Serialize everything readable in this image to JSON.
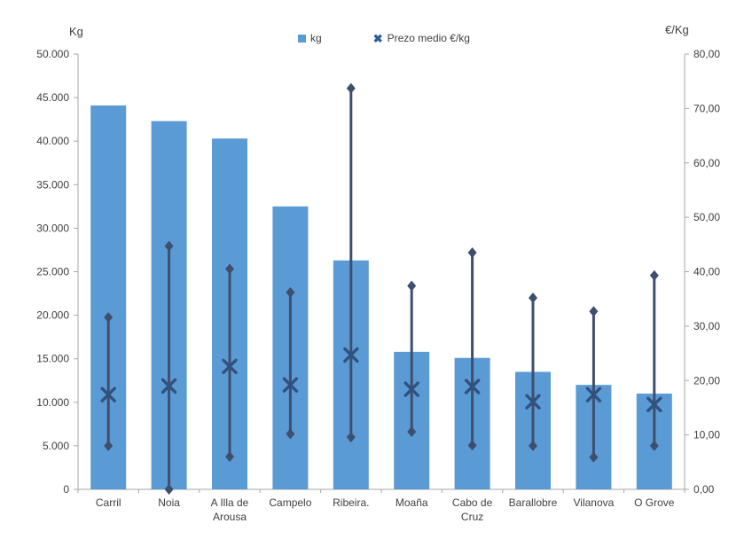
{
  "chart_data": {
    "type": "bar",
    "title": "",
    "categories": [
      "Carril",
      "Noia",
      "A Illa de Arousa",
      "Campelo",
      "Ribeira.",
      "Moaña",
      "Cabo de Cruz",
      "Barallobre",
      "Vilanova",
      "O Grove"
    ],
    "category_label_lines": [
      [
        "Carril"
      ],
      [
        "Noia"
      ],
      [
        "A Illa de",
        "Arousa"
      ],
      [
        "Campelo"
      ],
      [
        "Ribeira."
      ],
      [
        "Moaña"
      ],
      [
        "Cabo de",
        "Cruz"
      ],
      [
        "Barallobre"
      ],
      [
        "Vilanova"
      ],
      [
        "O Grove"
      ]
    ],
    "series": [
      {
        "name": "kg",
        "type": "bar",
        "axis": "left",
        "values": [
          44100,
          42300,
          40300,
          32500,
          26300,
          15800,
          15100,
          13500,
          12000,
          11000
        ]
      },
      {
        "name": "Prezo medio €/kg",
        "type": "scatter-x-with-range",
        "axis": "right",
        "values": [
          17.4,
          19.0,
          22.6,
          19.2,
          24.7,
          18.4,
          18.9,
          16.1,
          17.4,
          15.6
        ],
        "range_high": [
          31.6,
          44.7,
          40.5,
          36.2,
          73.7,
          37.4,
          43.5,
          35.2,
          32.7,
          39.3
        ],
        "range_low": [
          8.0,
          0.0,
          6.0,
          10.2,
          9.6,
          10.6,
          8.1,
          8.0,
          5.9,
          8.0
        ]
      }
    ],
    "left_axis": {
      "title": "Kg",
      "min": 0,
      "max": 50000,
      "tick_step": 5000,
      "tick_labels": [
        "0",
        "5.000",
        "10.000",
        "15.000",
        "20.000",
        "25.000",
        "30.000",
        "35.000",
        "40.000",
        "45.000",
        "50.000"
      ]
    },
    "right_axis": {
      "title": "€/Kg",
      "min": 0,
      "max": 80,
      "tick_step": 10,
      "tick_labels": [
        "0,00",
        "10,00",
        "20,00",
        "30,00",
        "40,00",
        "50,00",
        "60,00",
        "70,00",
        "80,00"
      ]
    },
    "legend": {
      "position": "top",
      "items": [
        {
          "label": "kg",
          "marker": "square",
          "color": "#5B9BD5"
        },
        {
          "label": "Prezo medio €/kg",
          "marker": "x",
          "color": "#2F5B9E"
        }
      ]
    },
    "colors": {
      "bar": "#5B9BD5",
      "range_line": "#3E4F6E",
      "avg_marker": "#32517E",
      "axis_line": "#A6A6A6",
      "text": "#404040"
    },
    "grid": false
  }
}
